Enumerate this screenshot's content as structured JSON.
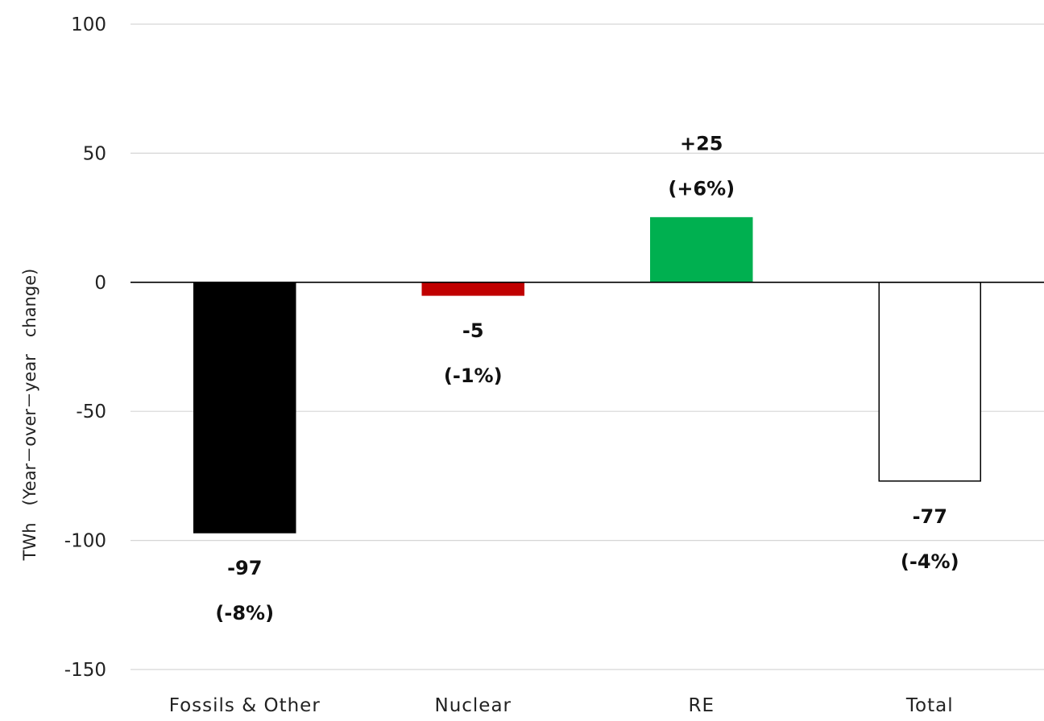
{
  "chart_data": {
    "type": "bar",
    "title": "",
    "xlabel": "",
    "ylabel": "TWh　(Year－over－year　change)",
    "ylim": [
      -150,
      100
    ],
    "yticks": [
      100,
      50,
      0,
      -50,
      -100,
      -150
    ],
    "grid": true,
    "legend": "none",
    "categories": [
      "Fossils & Other",
      "Nuclear",
      "RE",
      "Total"
    ],
    "values": [
      -97,
      -5,
      25,
      -77
    ],
    "colors": [
      "#000000",
      "#c00000",
      "#00b050",
      "#ffffff"
    ],
    "outline_colors": [
      "#000000",
      "#c00000",
      "#00b050",
      "#000000"
    ],
    "data_labels": [
      [
        "-97",
        "(-8%)"
      ],
      [
        "-5",
        "(-1%)"
      ],
      [
        "+25",
        "(+6%)"
      ],
      [
        "-77",
        "(-4%)"
      ]
    ]
  }
}
